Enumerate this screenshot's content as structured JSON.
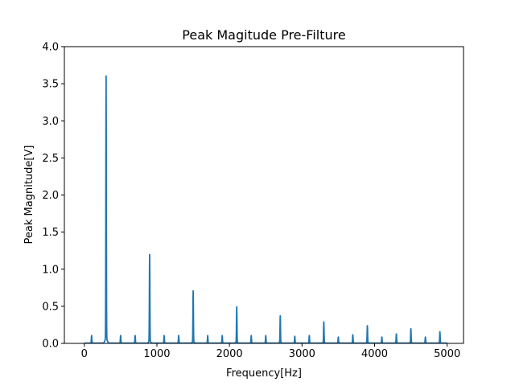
{
  "chart_data": {
    "type": "line",
    "title": "Peak Magitude Pre-Filture",
    "xlabel": "Frequency[Hz]",
    "ylabel": "Peak Magnitude[V]",
    "xlim": [
      -275,
      5225
    ],
    "ylim": [
      0,
      4.0
    ],
    "xticks": [
      0,
      1000,
      2000,
      3000,
      4000,
      5000
    ],
    "yticks": [
      0.0,
      0.5,
      1.0,
      1.5,
      2.0,
      2.5,
      3.0,
      3.5,
      4.0
    ],
    "grid": false,
    "line_color": "#1f77b4",
    "peaks": [
      {
        "x": 100,
        "y": 0.1
      },
      {
        "x": 300,
        "y": 3.53
      },
      {
        "x": 500,
        "y": 0.1
      },
      {
        "x": 700,
        "y": 0.1
      },
      {
        "x": 900,
        "y": 1.17
      },
      {
        "x": 1100,
        "y": 0.1
      },
      {
        "x": 1300,
        "y": 0.1
      },
      {
        "x": 1500,
        "y": 0.69
      },
      {
        "x": 1700,
        "y": 0.1
      },
      {
        "x": 1900,
        "y": 0.1
      },
      {
        "x": 2100,
        "y": 0.48
      },
      {
        "x": 2300,
        "y": 0.1
      },
      {
        "x": 2500,
        "y": 0.1
      },
      {
        "x": 2700,
        "y": 0.36
      },
      {
        "x": 2900,
        "y": 0.09
      },
      {
        "x": 3100,
        "y": 0.1
      },
      {
        "x": 3300,
        "y": 0.28
      },
      {
        "x": 3500,
        "y": 0.08
      },
      {
        "x": 3700,
        "y": 0.11
      },
      {
        "x": 3900,
        "y": 0.23
      },
      {
        "x": 4100,
        "y": 0.08
      },
      {
        "x": 4300,
        "y": 0.12
      },
      {
        "x": 4500,
        "y": 0.19
      },
      {
        "x": 4700,
        "y": 0.08
      },
      {
        "x": 4900,
        "y": 0.15
      }
    ],
    "x_range": [
      0,
      5000
    ]
  }
}
